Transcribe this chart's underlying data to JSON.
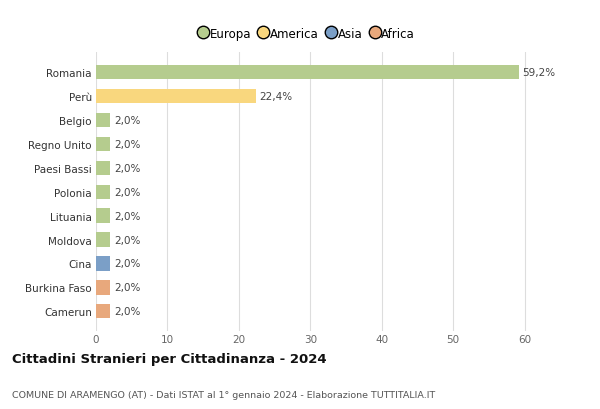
{
  "countries": [
    "Romania",
    "Perù",
    "Belgio",
    "Regno Unito",
    "Paesi Bassi",
    "Polonia",
    "Lituania",
    "Moldova",
    "Cina",
    "Burkina Faso",
    "Camerun"
  ],
  "values": [
    59.2,
    22.4,
    2.0,
    2.0,
    2.0,
    2.0,
    2.0,
    2.0,
    2.0,
    2.0,
    2.0
  ],
  "labels": [
    "59,2%",
    "22,4%",
    "2,0%",
    "2,0%",
    "2,0%",
    "2,0%",
    "2,0%",
    "2,0%",
    "2,0%",
    "2,0%",
    "2,0%"
  ],
  "colors": [
    "#b5cc8e",
    "#f9d77e",
    "#b5cc8e",
    "#b5cc8e",
    "#b5cc8e",
    "#b5cc8e",
    "#b5cc8e",
    "#b5cc8e",
    "#7b9fc7",
    "#e8a87c",
    "#e8a87c"
  ],
  "legend_labels": [
    "Europa",
    "America",
    "Asia",
    "Africa"
  ],
  "legend_colors": [
    "#b5cc8e",
    "#f9d77e",
    "#7b9fc7",
    "#e8a87c"
  ],
  "xlim": [
    0,
    63
  ],
  "xticks": [
    0,
    10,
    20,
    30,
    40,
    50,
    60
  ],
  "title": "Cittadini Stranieri per Cittadinanza - 2024",
  "subtitle": "COMUNE DI ARAMENGO (AT) - Dati ISTAT al 1° gennaio 2024 - Elaborazione TUTTITALIA.IT",
  "bg_color": "#ffffff",
  "grid_color": "#dddddd",
  "bar_height": 0.6
}
